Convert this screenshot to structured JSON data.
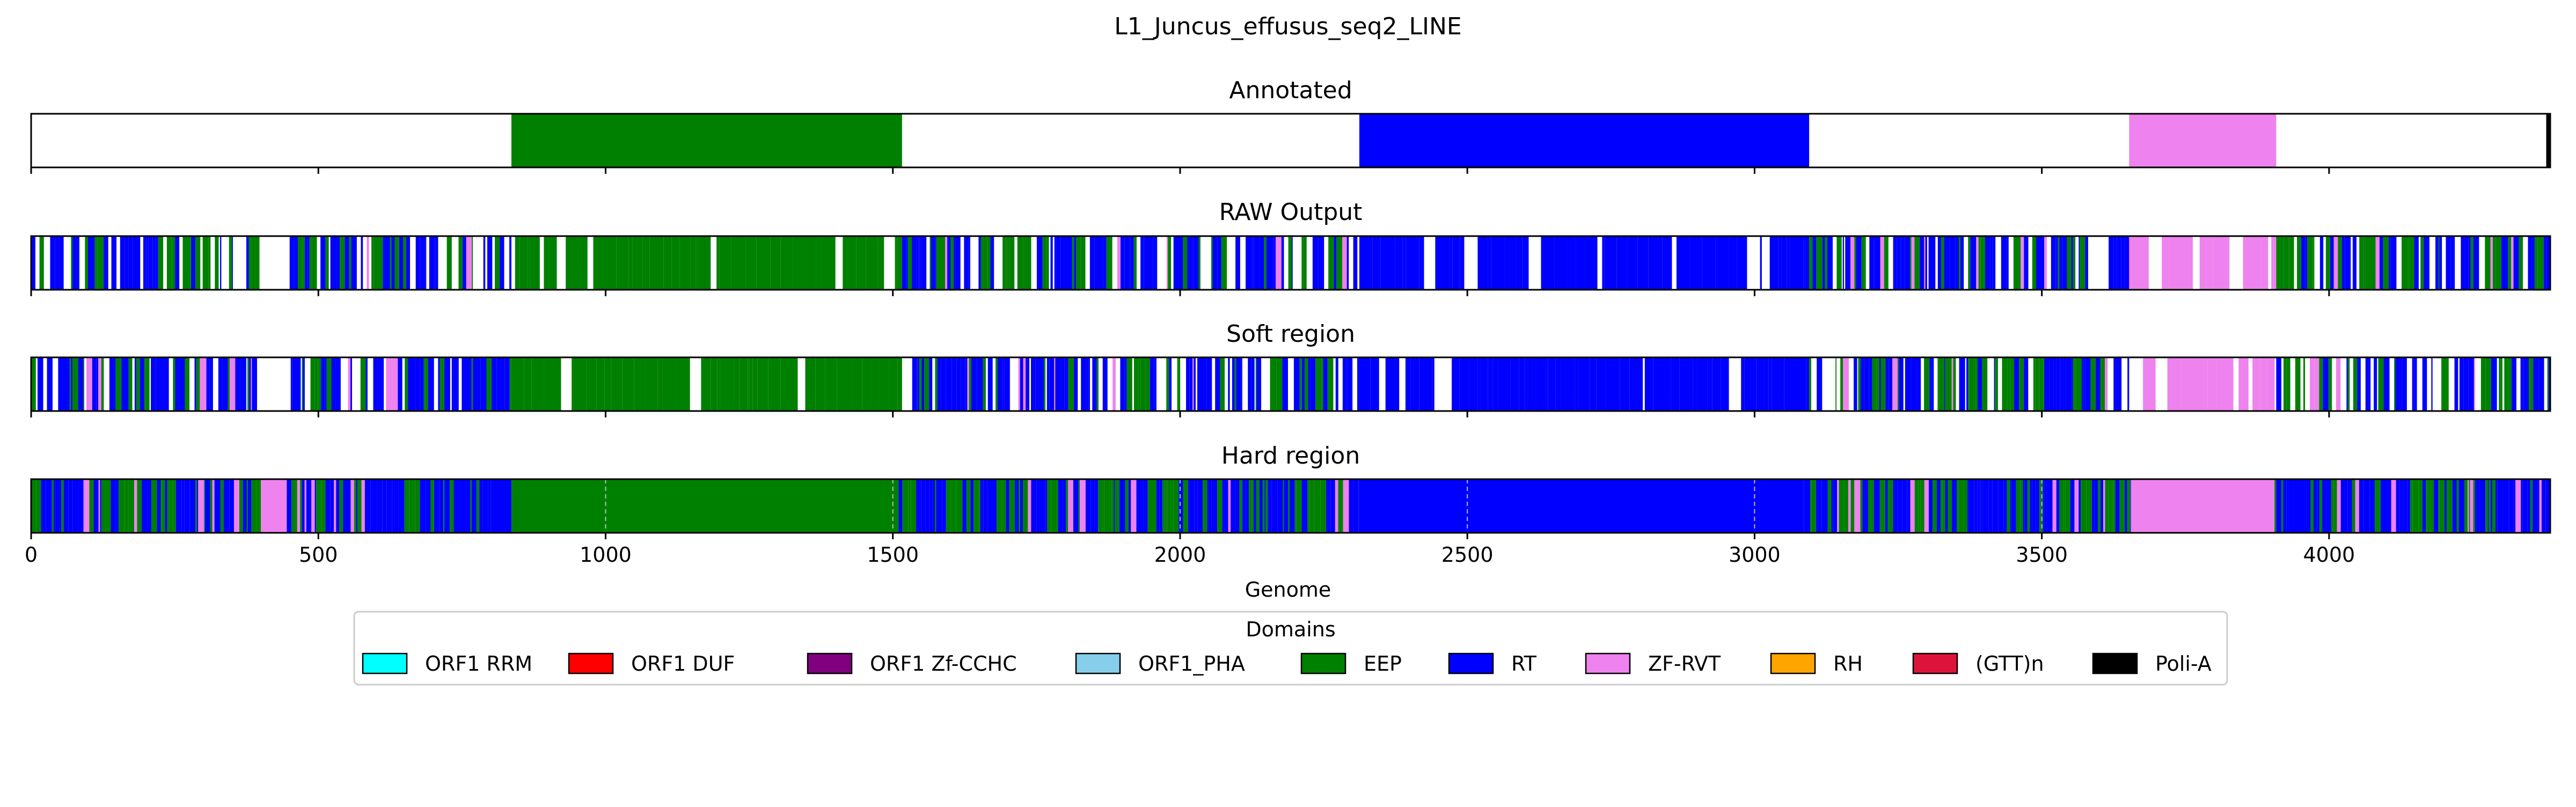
{
  "chart_data": {
    "type": "bar",
    "title": "L1_Juncus_effusus_seq2_LINE",
    "xlabel": "Genome",
    "xlim": [
      0,
      4385
    ],
    "xticks": [
      0,
      500,
      1000,
      1500,
      2000,
      2500,
      3000,
      3500,
      4000
    ],
    "hard_region_gridlines": [
      1000,
      1500,
      2000,
      2500,
      3000,
      3500
    ],
    "legend": {
      "title": "Domains",
      "placement": "bottom-center",
      "entries": [
        {
          "label": "ORF1 RRM",
          "color": "#00ffff"
        },
        {
          "label": "ORF1 DUF",
          "color": "#ff0000"
        },
        {
          "label": "ORF1 Zf-CCHC",
          "color": "#800080"
        },
        {
          "label": "ORF1_PHA",
          "color": "#87ceeb"
        },
        {
          "label": "EEP",
          "color": "#008000"
        },
        {
          "label": "RT",
          "color": "#0000ff"
        },
        {
          "label": "ZF-RVT",
          "color": "#ee82ee"
        },
        {
          "label": "RH",
          "color": "#ffa500"
        },
        {
          "label": "(GTT)n",
          "color": "#dc143c"
        },
        {
          "label": "Poli-A",
          "color": "#000000"
        }
      ]
    },
    "panels": [
      {
        "title": "Annotated",
        "segments": [
          {
            "start": 836,
            "end": 1516,
            "domain": "EEP"
          },
          {
            "start": 2312,
            "end": 3095,
            "domain": "RT"
          },
          {
            "start": 3652,
            "end": 3908,
            "domain": "ZF-RVT"
          },
          {
            "start": 4378,
            "end": 4385,
            "domain": "Poli-A"
          }
        ]
      },
      {
        "title": "RAW Output",
        "segments": [
          {
            "start": 0,
            "end": 400,
            "domain": "RT/EEP/ZF-RVT mixed"
          },
          {
            "start": 400,
            "end": 450,
            "domain": "none"
          },
          {
            "start": 450,
            "end": 836,
            "domain": "RT/EEP mixed"
          },
          {
            "start": 836,
            "end": 1516,
            "domain": "EEP"
          },
          {
            "start": 1516,
            "end": 2312,
            "domain": "RT/EEP mixed"
          },
          {
            "start": 2312,
            "end": 3095,
            "domain": "RT"
          },
          {
            "start": 3095,
            "end": 3652,
            "domain": "RT/EEP mixed"
          },
          {
            "start": 3652,
            "end": 3908,
            "domain": "ZF-RVT"
          },
          {
            "start": 3908,
            "end": 4385,
            "domain": "RT/EEP mixed"
          }
        ]
      },
      {
        "title": "Soft region",
        "segments": [
          {
            "start": 0,
            "end": 400,
            "domain": "RT/EEP/ZF-RVT mixed"
          },
          {
            "start": 400,
            "end": 450,
            "domain": "none"
          },
          {
            "start": 450,
            "end": 836,
            "domain": "RT/EEP mixed"
          },
          {
            "start": 836,
            "end": 1516,
            "domain": "EEP"
          },
          {
            "start": 1516,
            "end": 2312,
            "domain": "RT/EEP mixed"
          },
          {
            "start": 2312,
            "end": 3095,
            "domain": "RT"
          },
          {
            "start": 3095,
            "end": 3652,
            "domain": "RT/EEP mixed"
          },
          {
            "start": 3652,
            "end": 3908,
            "domain": "ZF-RVT"
          },
          {
            "start": 3908,
            "end": 4385,
            "domain": "RT/EEP mixed"
          }
        ]
      },
      {
        "title": "Hard region",
        "segments": [
          {
            "start": 0,
            "end": 400,
            "domain": "RT/EEP mixed"
          },
          {
            "start": 400,
            "end": 445,
            "domain": "ZF-RVT"
          },
          {
            "start": 445,
            "end": 800,
            "domain": "RT/EEP mixed"
          },
          {
            "start": 800,
            "end": 836,
            "domain": "RT"
          },
          {
            "start": 836,
            "end": 1510,
            "domain": "EEP"
          },
          {
            "start": 1510,
            "end": 2312,
            "domain": "RT/EEP mixed"
          },
          {
            "start": 2312,
            "end": 3085,
            "domain": "RT"
          },
          {
            "start": 3085,
            "end": 3655,
            "domain": "RT/EEP mixed"
          },
          {
            "start": 3655,
            "end": 3905,
            "domain": "ZF-RVT"
          },
          {
            "start": 3905,
            "end": 4385,
            "domain": "RT/EEP mixed"
          }
        ]
      }
    ]
  }
}
